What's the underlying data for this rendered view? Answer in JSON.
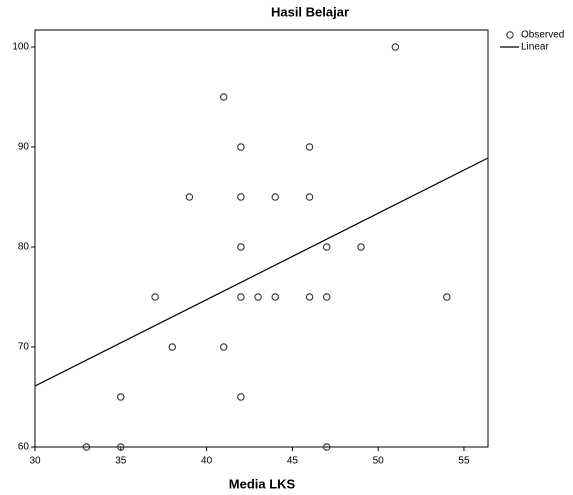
{
  "chart_data": {
    "type": "scatter",
    "title": "Hasil Belajar",
    "x_label": "Media LKS",
    "xlim": [
      30,
      56.4
    ],
    "ylim": [
      60,
      101.7
    ],
    "xticks": [
      30,
      35,
      40,
      45,
      50,
      55
    ],
    "yticks": [
      60,
      70,
      80,
      90,
      100
    ],
    "series": [
      {
        "name": "Observed",
        "color": "#333333",
        "x": [
          33,
          35,
          35,
          37,
          38,
          39,
          41,
          41,
          42,
          42,
          42,
          42,
          42,
          43,
          44,
          44,
          46,
          46,
          46,
          47,
          47,
          47,
          49,
          51,
          54
        ],
        "values": [
          60,
          60,
          65,
          75,
          70,
          85,
          95,
          70,
          90,
          85,
          80,
          75,
          65,
          75,
          85,
          75,
          90,
          85,
          75,
          80,
          75,
          60,
          80,
          100,
          75
        ]
      },
      {
        "name": "Linear",
        "color": "#000000",
        "x": [
          30,
          56.4
        ],
        "values": [
          66.1,
          88.9
        ]
      }
    ]
  }
}
